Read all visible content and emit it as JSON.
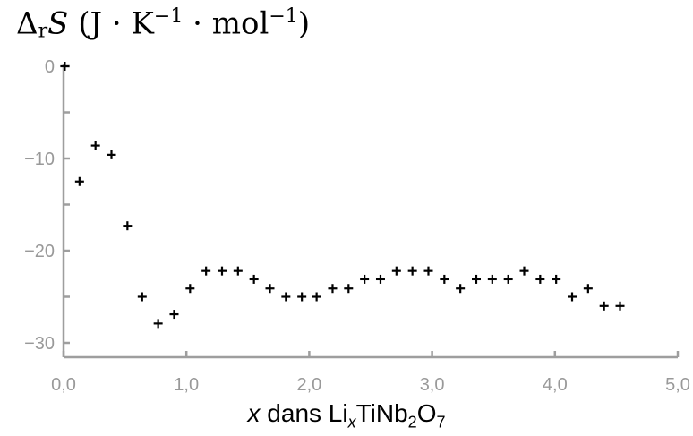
{
  "chart_data": {
    "type": "scatter",
    "marker": "plus",
    "ylabel_parts": {
      "delta": "Δ",
      "sub_r": "r",
      "s": "S",
      "units_open": "(J · K",
      "exp1": "−1",
      "units_mid": " · mol",
      "exp2": "−1",
      "units_close": ")"
    },
    "xlabel_parts": {
      "x": "x",
      "dans": " dans Li",
      "sub_x": "x",
      "tinb": "TiNb",
      "sub_2": "2",
      "o": "O",
      "sub_7": "7"
    },
    "xlim": [
      0,
      5
    ],
    "ylim": [
      -31.5,
      0.5
    ],
    "x_ticks": [
      0,
      1,
      2,
      3,
      4,
      5
    ],
    "x_tick_labels": [
      "0,0",
      "1,0",
      "2,0",
      "3,0",
      "4,0",
      "5,0"
    ],
    "y_ticks": [
      0,
      -10,
      -20,
      -30
    ],
    "y_tick_labels": [
      "0",
      "−10",
      "−20",
      "−30"
    ],
    "y_minor_ticks": [
      -5,
      -15,
      -25
    ],
    "x_minor_ticks": [
      0.5,
      1.5,
      2.5,
      3.5,
      4.5
    ],
    "grid": false,
    "colors": {
      "axis": "#9e9e9e",
      "tick_label": "#999999",
      "marker": "#000000"
    },
    "points": [
      {
        "x": 0.01,
        "y": 0.0
      },
      {
        "x": 0.13,
        "y": -12.5
      },
      {
        "x": 0.26,
        "y": -8.6
      },
      {
        "x": 0.39,
        "y": -9.6
      },
      {
        "x": 0.52,
        "y": -17.3
      },
      {
        "x": 0.64,
        "y": -25.0
      },
      {
        "x": 0.77,
        "y": -27.9
      },
      {
        "x": 0.9,
        "y": -26.9
      },
      {
        "x": 1.03,
        "y": -24.1
      },
      {
        "x": 1.16,
        "y": -22.2
      },
      {
        "x": 1.29,
        "y": -22.2
      },
      {
        "x": 1.42,
        "y": -22.2
      },
      {
        "x": 1.55,
        "y": -23.1
      },
      {
        "x": 1.68,
        "y": -24.1
      },
      {
        "x": 1.81,
        "y": -25.0
      },
      {
        "x": 1.94,
        "y": -25.0
      },
      {
        "x": 2.06,
        "y": -25.0
      },
      {
        "x": 2.19,
        "y": -24.1
      },
      {
        "x": 2.32,
        "y": -24.1
      },
      {
        "x": 2.45,
        "y": -23.1
      },
      {
        "x": 2.58,
        "y": -23.1
      },
      {
        "x": 2.71,
        "y": -22.2
      },
      {
        "x": 2.84,
        "y": -22.2
      },
      {
        "x": 2.97,
        "y": -22.2
      },
      {
        "x": 3.1,
        "y": -23.1
      },
      {
        "x": 3.23,
        "y": -24.1
      },
      {
        "x": 3.36,
        "y": -23.1
      },
      {
        "x": 3.49,
        "y": -23.1
      },
      {
        "x": 3.62,
        "y": -23.1
      },
      {
        "x": 3.75,
        "y": -22.2
      },
      {
        "x": 3.88,
        "y": -23.1
      },
      {
        "x": 4.01,
        "y": -23.1
      },
      {
        "x": 4.14,
        "y": -25.0
      },
      {
        "x": 4.27,
        "y": -24.1
      },
      {
        "x": 4.4,
        "y": -26.0
      },
      {
        "x": 4.53,
        "y": -26.0
      }
    ]
  }
}
